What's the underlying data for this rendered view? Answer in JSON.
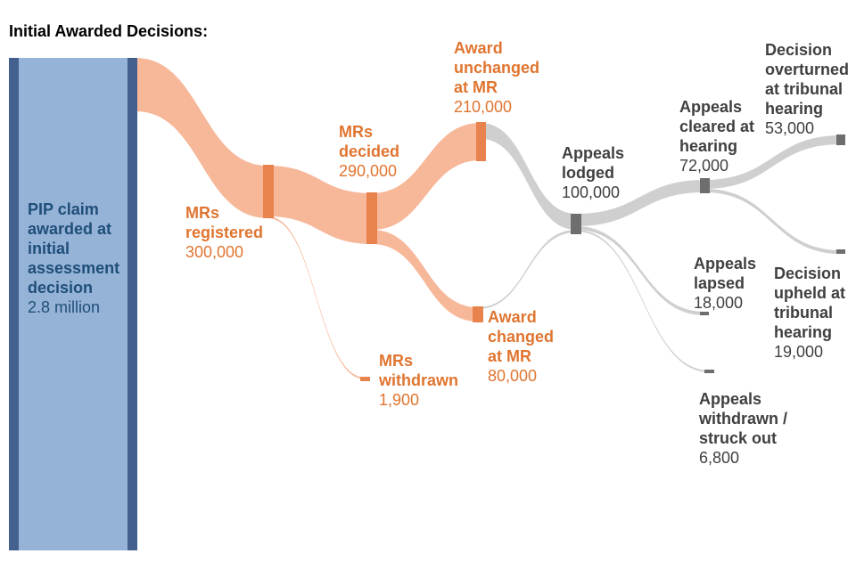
{
  "title": "Initial Awarded Decisions:",
  "colors": {
    "source_fill": "#95b3d7",
    "source_edge": "#44608f",
    "source_text": "#1f4e79",
    "mr_node": "#e8834d",
    "mr_flow": "#f7b89a",
    "mr_text": "#e07530",
    "appeal_node": "#6e6e6e",
    "appeal_flow": "#cfcfcf",
    "appeal_text": "#404040"
  },
  "nodes": {
    "source": {
      "title_lines": [
        "PIP claim",
        "awarded at",
        "initial",
        "assessment",
        "decision"
      ],
      "value": "2.8 million"
    },
    "mrs_registered": {
      "title_lines": [
        "MRs",
        "registered"
      ],
      "value": "300,000"
    },
    "mrs_decided": {
      "title_lines": [
        "MRs",
        "decided"
      ],
      "value": "290,000"
    },
    "mrs_withdrawn": {
      "title_lines": [
        "MRs",
        "withdrawn"
      ],
      "value": "1,900"
    },
    "award_unchanged": {
      "title_lines": [
        "Award",
        "unchanged",
        "at MR"
      ],
      "value": "210,000"
    },
    "award_changed": {
      "title_lines": [
        "Award",
        "changed",
        "at MR"
      ],
      "value": "80,000"
    },
    "appeals_lodged": {
      "title_lines": [
        "Appeals",
        "lodged"
      ],
      "value": "100,000"
    },
    "appeals_cleared": {
      "title_lines": [
        "Appeals",
        "cleared at",
        "hearing"
      ],
      "value": "72,000"
    },
    "appeals_lapsed": {
      "title_lines": [
        "Appeals",
        "lapsed"
      ],
      "value": "18,000"
    },
    "appeals_withdrawn": {
      "title_lines": [
        "Appeals",
        "withdrawn /",
        "struck out"
      ],
      "value": "6,800"
    },
    "decision_overturned": {
      "title_lines": [
        "Decision",
        "overturned",
        "at tribunal",
        "hearing"
      ],
      "value": "53,000"
    },
    "decision_upheld": {
      "title_lines": [
        "Decision",
        "upheld at",
        "tribunal",
        "hearing"
      ],
      "value": "19,000"
    }
  },
  "flows": [
    {
      "from": "source",
      "to": "mrs_registered",
      "value": 300000
    },
    {
      "from": "mrs_registered",
      "to": "mrs_decided",
      "value": 290000
    },
    {
      "from": "mrs_registered",
      "to": "mrs_withdrawn",
      "value": 1900
    },
    {
      "from": "mrs_decided",
      "to": "award_unchanged",
      "value": 210000
    },
    {
      "from": "mrs_decided",
      "to": "award_changed",
      "value": 80000
    },
    {
      "from": "award_unchanged",
      "to": "appeals_lodged",
      "value": 90000
    },
    {
      "from": "award_changed",
      "to": "appeals_lodged",
      "value": 10000
    },
    {
      "from": "appeals_lodged",
      "to": "appeals_cleared",
      "value": 72000
    },
    {
      "from": "appeals_lodged",
      "to": "appeals_lapsed",
      "value": 18000
    },
    {
      "from": "appeals_lodged",
      "to": "appeals_withdrawn",
      "value": 6800
    },
    {
      "from": "appeals_cleared",
      "to": "decision_overturned",
      "value": 53000
    },
    {
      "from": "appeals_cleared",
      "to": "decision_upheld",
      "value": 19000
    }
  ]
}
